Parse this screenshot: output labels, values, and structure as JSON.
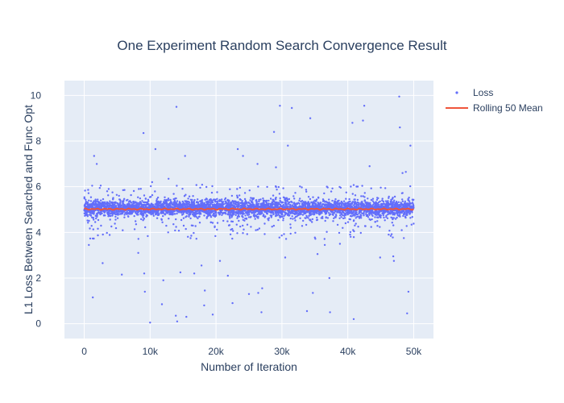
{
  "chart_data": {
    "type": "scatter",
    "title": "One Experiment Random Search Convergence Result",
    "xlabel": "Number of Iteration",
    "ylabel": "L1 Loss Between Searched and Func Opt",
    "xlim": [
      -3000,
      53000
    ],
    "ylim": [
      -0.65,
      10.65
    ],
    "x_ticks": [
      0,
      10000,
      20000,
      30000,
      40000,
      50000
    ],
    "x_tick_labels": [
      "0",
      "10k",
      "20k",
      "30k",
      "40k",
      "50k"
    ],
    "y_ticks": [
      0,
      2,
      4,
      6,
      8,
      10
    ],
    "y_tick_labels": [
      "0",
      "2",
      "4",
      "6",
      "8",
      "10"
    ],
    "grid": true,
    "legend_position": "top-right",
    "colors": {
      "plot_bg": "#e5ecf6",
      "grid": "#ffffff",
      "loss": "#636efa",
      "rolling": "#ef553b"
    },
    "series": [
      {
        "name": "Loss",
        "mode": "markers",
        "n_points": 50000,
        "band_center": 5.05,
        "dense_band": [
          4.6,
          5.5
        ],
        "outliers": [
          [
            1300,
            1.15
          ],
          [
            1500,
            7.35
          ],
          [
            1900,
            7.0
          ],
          [
            2500,
            6.05
          ],
          [
            2800,
            2.65
          ],
          [
            700,
            3.45
          ],
          [
            5700,
            2.15
          ],
          [
            5900,
            5.85
          ],
          [
            8200,
            3.1
          ],
          [
            9000,
            8.35
          ],
          [
            9100,
            2.2
          ],
          [
            9200,
            1.4
          ],
          [
            10000,
            0.05
          ],
          [
            10300,
            6.2
          ],
          [
            10800,
            7.65
          ],
          [
            11800,
            0.85
          ],
          [
            12000,
            1.9
          ],
          [
            12800,
            6.35
          ],
          [
            13900,
            0.35
          ],
          [
            14000,
            9.5
          ],
          [
            14100,
            0.1
          ],
          [
            14600,
            2.25
          ],
          [
            15300,
            7.35
          ],
          [
            15500,
            0.3
          ],
          [
            16700,
            2.2
          ],
          [
            17800,
            2.55
          ],
          [
            18300,
            1.45
          ],
          [
            18200,
            0.8
          ],
          [
            19500,
            0.4
          ],
          [
            20600,
            2.75
          ],
          [
            21800,
            2.1
          ],
          [
            22500,
            0.9
          ],
          [
            23300,
            7.65
          ],
          [
            24100,
            7.35
          ],
          [
            25000,
            1.3
          ],
          [
            26400,
            1.35
          ],
          [
            26300,
            7.0
          ],
          [
            26900,
            0.5
          ],
          [
            27000,
            1.55
          ],
          [
            28800,
            8.4
          ],
          [
            29100,
            6.85
          ],
          [
            29700,
            9.55
          ],
          [
            30500,
            2.9
          ],
          [
            30900,
            7.8
          ],
          [
            31500,
            9.45
          ],
          [
            33800,
            0.55
          ],
          [
            34300,
            9.0
          ],
          [
            34700,
            1.35
          ],
          [
            35400,
            3.05
          ],
          [
            36500,
            3.45
          ],
          [
            37200,
            2.0
          ],
          [
            37300,
            0.5
          ],
          [
            38800,
            3.5
          ],
          [
            40700,
            8.8
          ],
          [
            40900,
            0.2
          ],
          [
            42300,
            8.9
          ],
          [
            42500,
            9.55
          ],
          [
            43300,
            6.9
          ],
          [
            44900,
            2.9
          ],
          [
            46900,
            2.95
          ],
          [
            47000,
            2.75
          ],
          [
            47800,
            9.95
          ],
          [
            47900,
            8.6
          ],
          [
            48300,
            6.6
          ],
          [
            48800,
            6.65
          ],
          [
            49000,
            0.45
          ],
          [
            49200,
            1.4
          ],
          [
            49500,
            7.8
          ]
        ]
      },
      {
        "name": "Rolling 50 Mean",
        "mode": "lines",
        "value": 5.02
      }
    ]
  }
}
